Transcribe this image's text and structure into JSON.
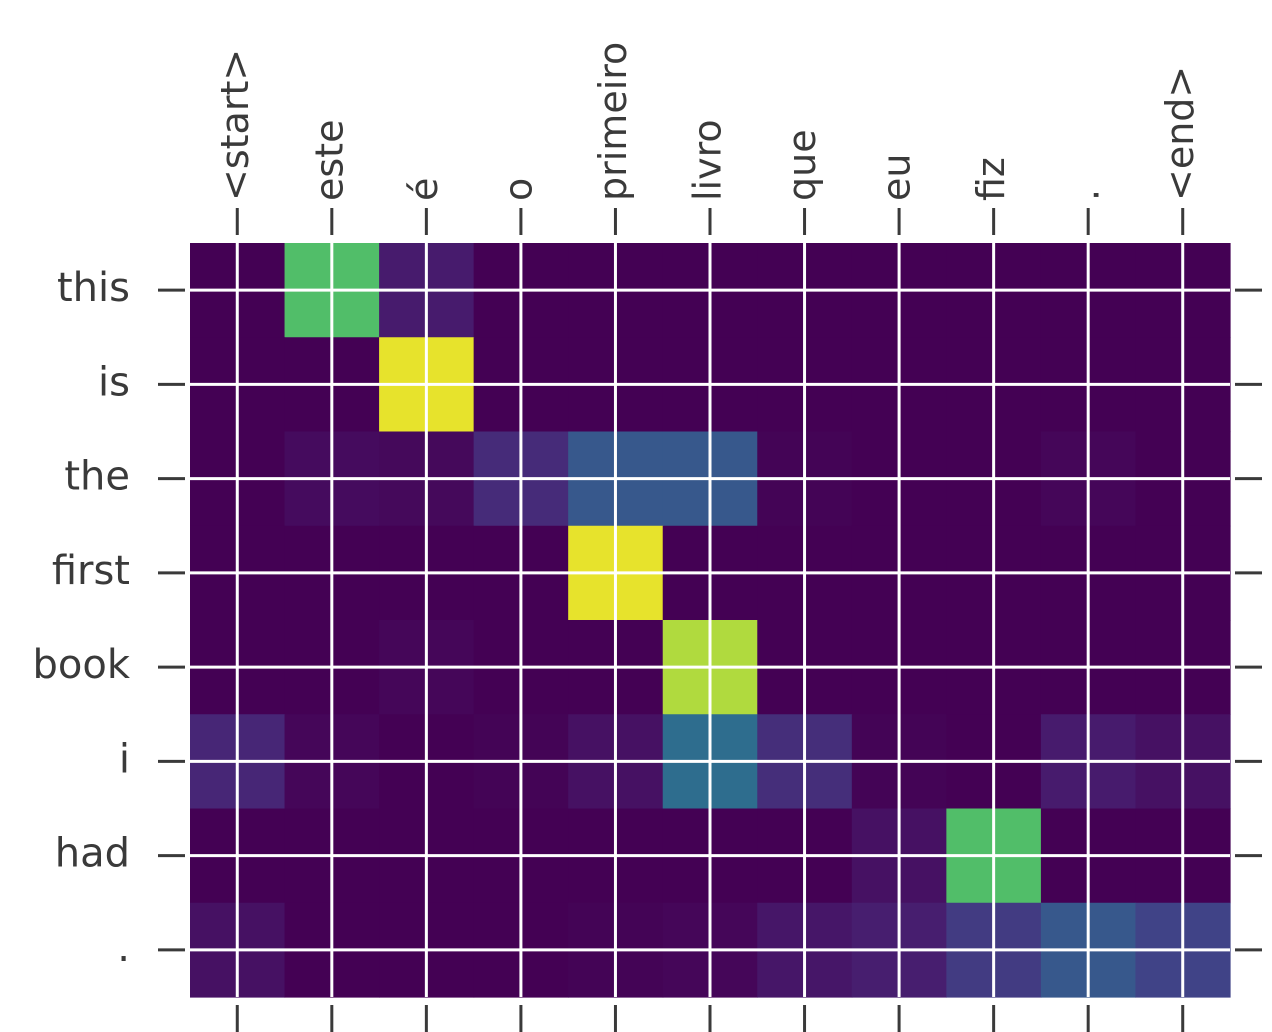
{
  "chart_data": {
    "type": "heatmap",
    "title": "",
    "xlabel": "",
    "ylabel": "",
    "x_labels": [
      "<start>",
      "este",
      "é",
      "o",
      "primeiro",
      "livro",
      "que",
      "eu",
      "fiz",
      ".",
      "<end>"
    ],
    "y_labels": [
      "this",
      "is",
      "the",
      "first",
      "book",
      "i",
      "had",
      "."
    ],
    "colormap": "viridis",
    "value_range": [
      0,
      1
    ],
    "grid": true,
    "values": [
      [
        0.0,
        0.82,
        0.1,
        0.0,
        0.0,
        0.0,
        0.0,
        0.0,
        0.0,
        0.0,
        0.0
      ],
      [
        0.0,
        0.0,
        0.98,
        0.0,
        0.0,
        0.0,
        0.0,
        0.0,
        0.0,
        0.0,
        0.0
      ],
      [
        0.0,
        0.04,
        0.03,
        0.16,
        0.35,
        0.35,
        0.01,
        0.0,
        0.0,
        0.02,
        0.0
      ],
      [
        0.0,
        0.0,
        0.0,
        0.0,
        0.98,
        0.0,
        0.0,
        0.0,
        0.0,
        0.0,
        0.0
      ],
      [
        0.0,
        0.0,
        0.02,
        0.0,
        0.0,
        0.93,
        0.0,
        0.0,
        0.0,
        0.0,
        0.0
      ],
      [
        0.14,
        0.02,
        0.0,
        0.01,
        0.06,
        0.45,
        0.17,
        0.01,
        0.0,
        0.1,
        0.06
      ],
      [
        0.0,
        0.0,
        0.0,
        0.0,
        0.0,
        0.0,
        0.0,
        0.06,
        0.82,
        0.0,
        0.0
      ],
      [
        0.06,
        0.0,
        0.0,
        0.0,
        0.01,
        0.02,
        0.08,
        0.11,
        0.22,
        0.35,
        0.25
      ]
    ]
  }
}
